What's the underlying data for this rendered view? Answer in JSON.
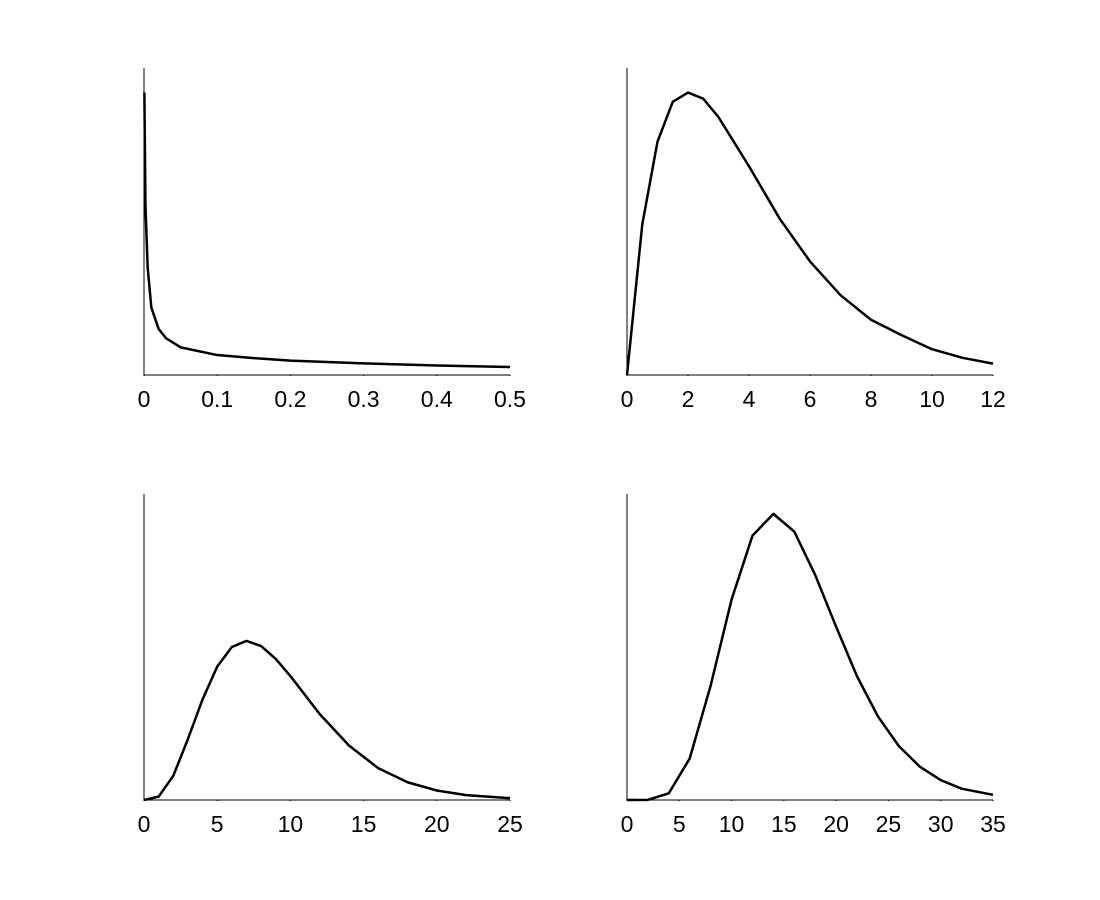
{
  "chart_data": [
    {
      "type": "line",
      "color": "#000000",
      "x": [
        0.0005,
        0.002,
        0.005,
        0.01,
        0.02,
        0.03,
        0.05,
        0.1,
        0.15,
        0.2,
        0.3,
        0.4,
        0.5
      ],
      "values": [
        0.92,
        0.55,
        0.35,
        0.22,
        0.15,
        0.12,
        0.09,
        0.065,
        0.055,
        0.047,
        0.038,
        0.031,
        0.026
      ],
      "xlim": [
        0,
        0.5
      ],
      "xticks": [
        0,
        0.1,
        0.2,
        0.3,
        0.4,
        0.5
      ],
      "ylim": [
        0,
        1
      ]
    },
    {
      "type": "line",
      "color": "#000000",
      "x": [
        0,
        0.5,
        1,
        1.5,
        2,
        2.5,
        3,
        4,
        5,
        6,
        7,
        8,
        9,
        10,
        11,
        12
      ],
      "values": [
        0,
        0.49,
        0.76,
        0.89,
        0.92,
        0.9,
        0.84,
        0.68,
        0.51,
        0.37,
        0.26,
        0.18,
        0.13,
        0.084,
        0.056,
        0.037
      ],
      "xlim": [
        0,
        12
      ],
      "xticks": [
        0,
        2,
        4,
        6,
        8,
        10,
        12
      ],
      "ylim": [
        0,
        1
      ]
    },
    {
      "type": "line",
      "color": "#000000",
      "x": [
        0,
        1,
        2,
        3,
        4,
        5,
        6,
        7,
        8,
        9,
        10,
        12,
        14,
        16,
        18,
        20,
        22,
        25
      ],
      "values": [
        0,
        0.011,
        0.079,
        0.199,
        0.329,
        0.436,
        0.5,
        0.52,
        0.503,
        0.461,
        0.405,
        0.281,
        0.178,
        0.104,
        0.058,
        0.031,
        0.016,
        0.006
      ],
      "xlim": [
        0,
        25
      ],
      "xticks": [
        0,
        5,
        10,
        15,
        20,
        25
      ],
      "ylim": [
        0,
        1
      ]
    },
    {
      "type": "line",
      "color": "#000000",
      "x": [
        0,
        2,
        4,
        6,
        8,
        10,
        12,
        14,
        16,
        18,
        20,
        22,
        24,
        26,
        28,
        30,
        32,
        35
      ],
      "values": [
        0,
        0.0005,
        0.022,
        0.136,
        0.374,
        0.655,
        0.864,
        0.935,
        0.877,
        0.735,
        0.566,
        0.404,
        0.273,
        0.176,
        0.109,
        0.065,
        0.037,
        0.017
      ],
      "xlim": [
        0,
        35
      ],
      "xticks": [
        0,
        5,
        10,
        15,
        20,
        25,
        30,
        35
      ],
      "ylim": [
        0,
        1
      ]
    }
  ]
}
